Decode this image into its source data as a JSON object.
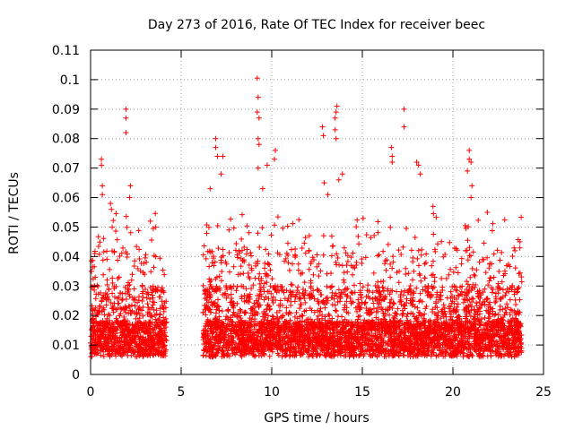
{
  "chart_data": {
    "type": "scatter",
    "title": "Day 273 of 2016, Rate Of TEC Index for receiver beec",
    "xlabel": "GPS time / hours",
    "ylabel": "ROTI / TECUs",
    "xlim": [
      0,
      25
    ],
    "ylim": [
      0,
      0.11
    ],
    "xticks": [
      "0",
      "5",
      "10",
      "15",
      "20",
      "25"
    ],
    "xtick_values": [
      0,
      5,
      10,
      15,
      20,
      25
    ],
    "yticks": [
      "0",
      "0.01",
      "0.02",
      "0.03",
      "0.04",
      "0.05",
      "0.06",
      "0.07",
      "0.08",
      "0.09",
      "0.1",
      "0.11"
    ],
    "ytick_values": [
      0,
      0.01,
      0.02,
      0.03,
      0.04,
      0.05,
      0.06,
      0.07,
      0.08,
      0.09,
      0.1,
      0.11
    ],
    "grid": true,
    "marker": "+",
    "color": "#ff0000",
    "data_gap_hours": [
      4.2,
      6.2
    ],
    "outliers": [
      {
        "x": 0.6,
        "y": 0.073
      },
      {
        "x": 0.6,
        "y": 0.071
      },
      {
        "x": 0.65,
        "y": 0.064
      },
      {
        "x": 0.65,
        "y": 0.061
      },
      {
        "x": 1.1,
        "y": 0.058
      },
      {
        "x": 1.15,
        "y": 0.056
      },
      {
        "x": 1.95,
        "y": 0.09
      },
      {
        "x": 1.95,
        "y": 0.087
      },
      {
        "x": 1.95,
        "y": 0.082
      },
      {
        "x": 2.2,
        "y": 0.064
      },
      {
        "x": 2.15,
        "y": 0.06
      },
      {
        "x": 3.3,
        "y": 0.052
      },
      {
        "x": 3.6,
        "y": 0.05
      },
      {
        "x": 6.9,
        "y": 0.08
      },
      {
        "x": 6.9,
        "y": 0.077
      },
      {
        "x": 7.0,
        "y": 0.074
      },
      {
        "x": 7.3,
        "y": 0.074
      },
      {
        "x": 7.2,
        "y": 0.068
      },
      {
        "x": 6.6,
        "y": 0.063
      },
      {
        "x": 9.2,
        "y": 0.1005
      },
      {
        "x": 9.25,
        "y": 0.094
      },
      {
        "x": 9.2,
        "y": 0.089
      },
      {
        "x": 9.3,
        "y": 0.087
      },
      {
        "x": 9.25,
        "y": 0.08
      },
      {
        "x": 9.3,
        "y": 0.078
      },
      {
        "x": 9.25,
        "y": 0.07
      },
      {
        "x": 10.2,
        "y": 0.076
      },
      {
        "x": 10.15,
        "y": 0.073
      },
      {
        "x": 9.75,
        "y": 0.071
      },
      {
        "x": 9.5,
        "y": 0.063
      },
      {
        "x": 12.8,
        "y": 0.084
      },
      {
        "x": 12.85,
        "y": 0.081
      },
      {
        "x": 13.6,
        "y": 0.091
      },
      {
        "x": 13.55,
        "y": 0.089
      },
      {
        "x": 13.5,
        "y": 0.087
      },
      {
        "x": 13.5,
        "y": 0.083
      },
      {
        "x": 13.55,
        "y": 0.08
      },
      {
        "x": 12.9,
        "y": 0.065
      },
      {
        "x": 13.9,
        "y": 0.068
      },
      {
        "x": 13.7,
        "y": 0.066
      },
      {
        "x": 13.1,
        "y": 0.061
      },
      {
        "x": 16.6,
        "y": 0.077
      },
      {
        "x": 16.65,
        "y": 0.074
      },
      {
        "x": 16.65,
        "y": 0.072
      },
      {
        "x": 17.3,
        "y": 0.09
      },
      {
        "x": 17.3,
        "y": 0.084
      },
      {
        "x": 18.0,
        "y": 0.072
      },
      {
        "x": 18.1,
        "y": 0.071
      },
      {
        "x": 18.2,
        "y": 0.068
      },
      {
        "x": 18.9,
        "y": 0.057
      },
      {
        "x": 20.9,
        "y": 0.076
      },
      {
        "x": 20.9,
        "y": 0.073
      },
      {
        "x": 21.0,
        "y": 0.072
      },
      {
        "x": 20.8,
        "y": 0.069
      },
      {
        "x": 21.05,
        "y": 0.064
      },
      {
        "x": 21.0,
        "y": 0.06
      },
      {
        "x": 21.9,
        "y": 0.055
      },
      {
        "x": 23.7,
        "y": 0.045
      }
    ]
  }
}
